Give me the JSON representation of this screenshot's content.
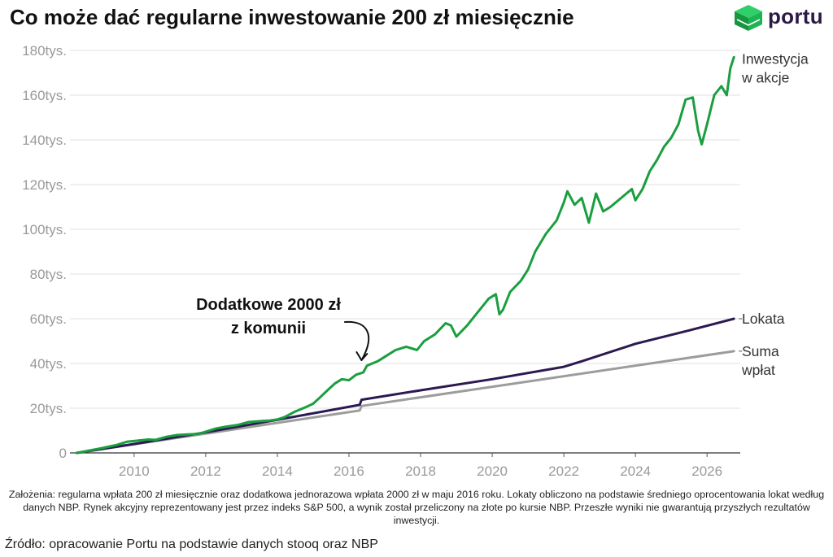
{
  "header": {
    "title": "Co może dać regularne inwestowanie 200 zł miesięcznie",
    "logo_text": "portu"
  },
  "footer": {
    "assumptions": "Założenia: regularna wpłata 200 zł miesięcznie oraz dodatkowa jednorazowa wpłata 2000 zł w maju 2016 roku. Lokaty obliczono na podstawie średniego oprocentowania lokat według danych NBP. Rynek akcyjny reprezentowany jest przez indeks S&P 500, a wynik został przeliczony na złote po kursie NBP. Przeszłe wyniki nie gwarantują przyszłych rezultatów inwestycji.",
    "source": "Źródło: opracowanie Portu na podstawie danych stooq oraz NBP"
  },
  "colors": {
    "stocks": "#1a9e3f",
    "deposit": "#2b1a52",
    "payments": "#9c9c9c",
    "grid": "#e0e0e0",
    "axis_text": "#9a9a9a",
    "logo_green_light": "#2fd06a",
    "logo_green_dark": "#17963f"
  },
  "chart_data": {
    "type": "line",
    "title": "Co może dać regularne inwestowanie 200 zł miesięcznie",
    "xlabel": "",
    "ylabel": "",
    "xlim": [
      2008.3,
      2026.7
    ],
    "ylim": [
      0,
      180000
    ],
    "x_ticks": [
      2010,
      2012,
      2014,
      2016,
      2018,
      2020,
      2022,
      2024,
      2026
    ],
    "y_ticks": [
      0,
      20000,
      40000,
      60000,
      80000,
      100000,
      120000,
      140000,
      160000,
      180000
    ],
    "y_tick_labels": [
      "0",
      "20tys.",
      "40tys.",
      "60tys.",
      "80tys.",
      "100tys.",
      "120tys.",
      "140tys.",
      "160tys.",
      "180tys."
    ],
    "grid": true,
    "legend": "inline labels at line ends (right)",
    "annotation": {
      "text_line1": "Dodatkowe 2000 zł",
      "text_line2": "z komunii",
      "x": 2016.35,
      "y": 40000
    },
    "series": [
      {
        "name": "Inwestycja w akcje",
        "label_line1": "Inwestycja",
        "label_line2": "w akcje",
        "color_key": "stocks",
        "points": [
          [
            2008.4,
            0
          ],
          [
            2009.0,
            1800
          ],
          [
            2009.5,
            3500
          ],
          [
            2009.8,
            5000
          ],
          [
            2010.1,
            5500
          ],
          [
            2010.4,
            6000
          ],
          [
            2010.6,
            5800
          ],
          [
            2010.9,
            7200
          ],
          [
            2011.2,
            8000
          ],
          [
            2011.5,
            8300
          ],
          [
            2011.8,
            8500
          ],
          [
            2012.0,
            9500
          ],
          [
            2012.3,
            11000
          ],
          [
            2012.6,
            11800
          ],
          [
            2012.9,
            12500
          ],
          [
            2013.2,
            13800
          ],
          [
            2013.5,
            14200
          ],
          [
            2013.8,
            14500
          ],
          [
            2014.0,
            15000
          ],
          [
            2014.2,
            16000
          ],
          [
            2014.5,
            18500
          ],
          [
            2014.8,
            20500
          ],
          [
            2015.0,
            22000
          ],
          [
            2015.2,
            25000
          ],
          [
            2015.4,
            28000
          ],
          [
            2015.6,
            31000
          ],
          [
            2015.8,
            33000
          ],
          [
            2016.0,
            32500
          ],
          [
            2016.2,
            35000
          ],
          [
            2016.4,
            36000
          ],
          [
            2016.5,
            39000
          ],
          [
            2016.8,
            41000
          ],
          [
            2017.0,
            43000
          ],
          [
            2017.3,
            46000
          ],
          [
            2017.6,
            47500
          ],
          [
            2017.9,
            46000
          ],
          [
            2018.1,
            50000
          ],
          [
            2018.4,
            53000
          ],
          [
            2018.7,
            58000
          ],
          [
            2018.85,
            57000
          ],
          [
            2019.0,
            52000
          ],
          [
            2019.3,
            57000
          ],
          [
            2019.6,
            63000
          ],
          [
            2019.9,
            69000
          ],
          [
            2020.1,
            71000
          ],
          [
            2020.2,
            62000
          ],
          [
            2020.3,
            64000
          ],
          [
            2020.5,
            72000
          ],
          [
            2020.8,
            77000
          ],
          [
            2021.0,
            82000
          ],
          [
            2021.2,
            90000
          ],
          [
            2021.5,
            98000
          ],
          [
            2021.8,
            104000
          ],
          [
            2022.0,
            112000
          ],
          [
            2022.1,
            117000
          ],
          [
            2022.3,
            111000
          ],
          [
            2022.5,
            114000
          ],
          [
            2022.7,
            103000
          ],
          [
            2022.9,
            116000
          ],
          [
            2023.1,
            108000
          ],
          [
            2023.3,
            110000
          ],
          [
            2023.6,
            114000
          ],
          [
            2023.9,
            118000
          ],
          [
            2024.0,
            113000
          ],
          [
            2024.2,
            118000
          ],
          [
            2024.4,
            126000
          ],
          [
            2024.6,
            131000
          ],
          [
            2024.8,
            137000
          ],
          [
            2025.0,
            141000
          ],
          [
            2025.2,
            147000
          ],
          [
            2025.4,
            158000
          ],
          [
            2025.6,
            159000
          ],
          [
            2025.75,
            144000
          ],
          [
            2025.85,
            138000
          ],
          [
            2026.0,
            147000
          ],
          [
            2026.2,
            160000
          ],
          [
            2026.4,
            164000
          ],
          [
            2026.55,
            160000
          ],
          [
            2026.65,
            172000
          ],
          [
            2026.75,
            177000
          ]
        ]
      },
      {
        "name": "Lokata",
        "label_line1": "Lokata",
        "label_line2": "",
        "color_key": "deposit",
        "points": [
          [
            2008.4,
            0
          ],
          [
            2010.0,
            4000
          ],
          [
            2012.0,
            9200
          ],
          [
            2014.0,
            14800
          ],
          [
            2016.3,
            21500
          ],
          [
            2016.35,
            23800
          ],
          [
            2018.0,
            28000
          ],
          [
            2020.0,
            33000
          ],
          [
            2022.0,
            38500
          ],
          [
            2022.5,
            41000
          ],
          [
            2024.0,
            48800
          ],
          [
            2025.5,
            54800
          ],
          [
            2026.75,
            60000
          ]
        ]
      },
      {
        "name": "Suma wpłat",
        "label_line1": "Suma",
        "label_line2": "wpłat",
        "color_key": "payments",
        "points": [
          [
            2008.4,
            0
          ],
          [
            2016.3,
            19000
          ],
          [
            2016.35,
            21000
          ],
          [
            2026.75,
            45500
          ]
        ]
      }
    ]
  }
}
